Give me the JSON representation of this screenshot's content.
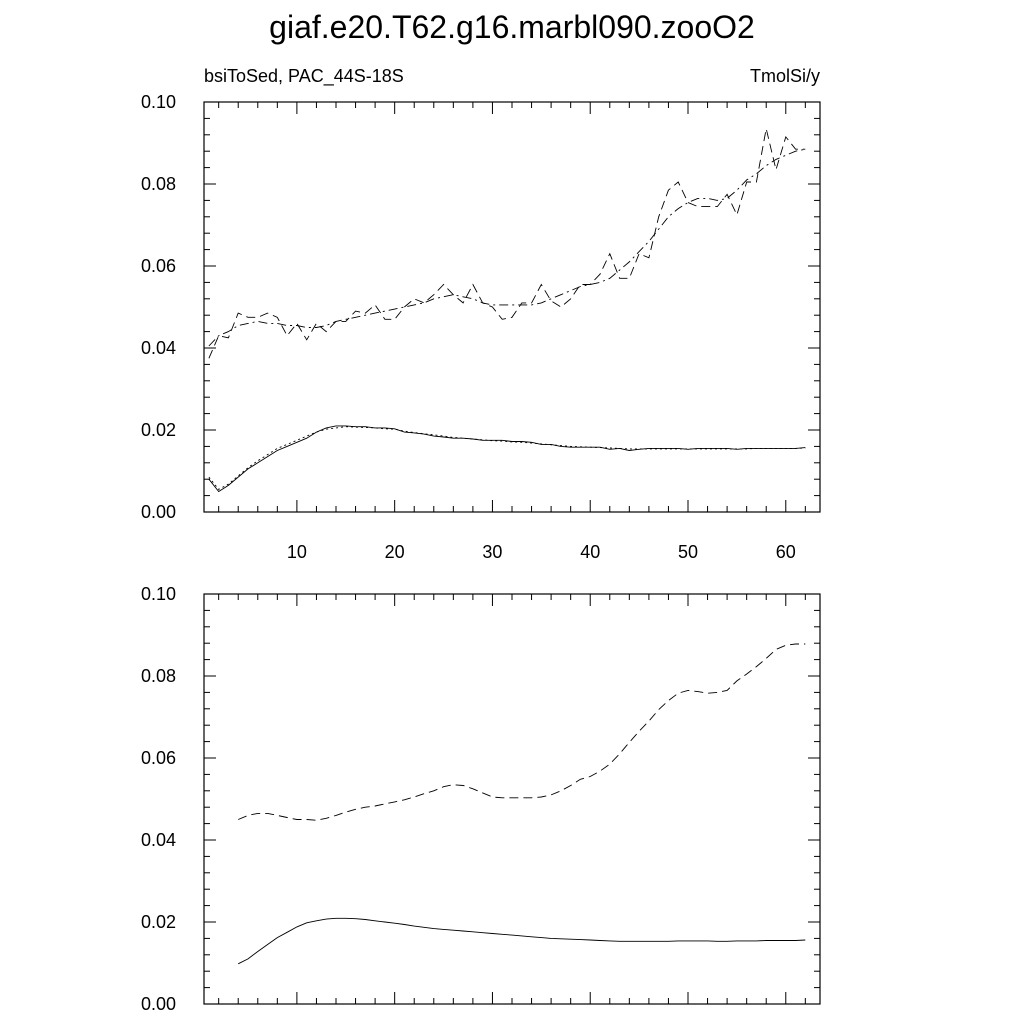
{
  "title": "giaf.e20.T62.g16.marbl090.zooO2",
  "panels": [
    {
      "left_label": "bsiToSed, PAC_44S-18S",
      "right_label": "TmolSi/y",
      "show_x_tick_labels": true
    },
    {
      "left_label": "",
      "right_label": "",
      "show_x_tick_labels": false
    }
  ],
  "chart_data": [
    {
      "type": "line",
      "xlim": [
        0.5,
        63.5
      ],
      "ylim": [
        0.0,
        0.1
      ],
      "x_major_ticks": [
        10,
        20,
        30,
        40,
        50,
        60
      ],
      "x_tick_labels": [
        "10",
        "20",
        "30",
        "40",
        "50",
        "60"
      ],
      "y_major_ticks": [
        0.0,
        0.02,
        0.04,
        0.06,
        0.08,
        0.1
      ],
      "y_tick_labels": [
        "0.00",
        "0.02",
        "0.04",
        "0.06",
        "0.08",
        "0.10"
      ],
      "grid": false,
      "series": [
        {
          "style": "dashed",
          "x": [
            1,
            2,
            3,
            4,
            5,
            6,
            7,
            8,
            9,
            10,
            11,
            12,
            13,
            14,
            15,
            16,
            17,
            18,
            19,
            20,
            21,
            22,
            23,
            24,
            25,
            26,
            27,
            28,
            29,
            30,
            31,
            32,
            33,
            34,
            35,
            36,
            37,
            38,
            39,
            40,
            41,
            42,
            43,
            44,
            45,
            46,
            47,
            48,
            49,
            50,
            51,
            52,
            53,
            54,
            55,
            56,
            57,
            58,
            59,
            60,
            61,
            62
          ],
          "values": [
            0.0375,
            0.043,
            0.0425,
            0.0485,
            0.0475,
            0.0475,
            0.0485,
            0.0475,
            0.043,
            0.046,
            0.042,
            0.046,
            0.044,
            0.0465,
            0.0465,
            0.049,
            0.0485,
            0.0505,
            0.047,
            0.047,
            0.05,
            0.052,
            0.051,
            0.053,
            0.0555,
            0.053,
            0.051,
            0.0555,
            0.051,
            0.05,
            0.047,
            0.0475,
            0.051,
            0.051,
            0.0555,
            0.0515,
            0.05,
            0.052,
            0.0555,
            0.0555,
            0.058,
            0.063,
            0.057,
            0.057,
            0.063,
            0.062,
            0.072,
            0.0785,
            0.0805,
            0.0755,
            0.0745,
            0.0745,
            0.0745,
            0.0775,
            0.0725,
            0.0805,
            0.0805,
            0.0935,
            0.0835,
            0.0915,
            0.0885,
            0.0885
          ]
        },
        {
          "style": "dash-dot",
          "x": [
            1,
            2,
            3,
            4,
            5,
            6,
            7,
            8,
            9,
            10,
            11,
            12,
            13,
            14,
            15,
            16,
            17,
            18,
            19,
            20,
            21,
            22,
            23,
            24,
            25,
            26,
            27,
            28,
            29,
            30,
            31,
            32,
            33,
            34,
            35,
            36,
            37,
            38,
            39,
            40,
            41,
            42,
            43,
            44,
            45,
            46,
            47,
            48,
            49,
            50,
            51,
            52,
            53,
            54,
            55,
            56,
            57,
            58,
            59,
            60,
            61,
            62
          ],
          "values": [
            0.0405,
            0.043,
            0.044,
            0.0455,
            0.046,
            0.0465,
            0.046,
            0.046,
            0.0455,
            0.0455,
            0.045,
            0.045,
            0.0455,
            0.0465,
            0.047,
            0.0475,
            0.048,
            0.0485,
            0.049,
            0.0495,
            0.05,
            0.0505,
            0.051,
            0.052,
            0.0525,
            0.053,
            0.0525,
            0.052,
            0.051,
            0.0505,
            0.0505,
            0.0505,
            0.0505,
            0.0505,
            0.051,
            0.052,
            0.053,
            0.054,
            0.055,
            0.0555,
            0.056,
            0.057,
            0.059,
            0.061,
            0.0635,
            0.066,
            0.069,
            0.072,
            0.074,
            0.0755,
            0.0765,
            0.0765,
            0.076,
            0.0765,
            0.0785,
            0.081,
            0.0825,
            0.0845,
            0.086,
            0.087,
            0.088,
            0.0885
          ]
        },
        {
          "style": "solid",
          "x": [
            1,
            2,
            3,
            4,
            5,
            6,
            7,
            8,
            9,
            10,
            11,
            12,
            13,
            14,
            15,
            16,
            17,
            18,
            19,
            20,
            21,
            22,
            23,
            24,
            25,
            26,
            27,
            28,
            29,
            30,
            31,
            32,
            33,
            34,
            35,
            36,
            37,
            38,
            39,
            40,
            41,
            42,
            43,
            44,
            45,
            46,
            47,
            48,
            49,
            50,
            51,
            52,
            53,
            54,
            55,
            56,
            57,
            58,
            59,
            60,
            61,
            62
          ],
          "values": [
            0.008,
            0.005,
            0.0065,
            0.0085,
            0.0105,
            0.012,
            0.0135,
            0.015,
            0.016,
            0.017,
            0.018,
            0.0195,
            0.0205,
            0.021,
            0.021,
            0.0208,
            0.0208,
            0.0205,
            0.0205,
            0.0203,
            0.0195,
            0.0193,
            0.019,
            0.0185,
            0.0183,
            0.018,
            0.018,
            0.0178,
            0.0175,
            0.0175,
            0.0175,
            0.0172,
            0.0172,
            0.017,
            0.0165,
            0.0165,
            0.016,
            0.0158,
            0.0158,
            0.0158,
            0.0158,
            0.0153,
            0.0155,
            0.015,
            0.0153,
            0.0155,
            0.0155,
            0.0155,
            0.0155,
            0.0153,
            0.0155,
            0.0155,
            0.0155,
            0.0155,
            0.0153,
            0.0155,
            0.0155,
            0.0155,
            0.0155,
            0.0155,
            0.0155,
            0.0157
          ]
        },
        {
          "style": "dotted",
          "x": [
            1,
            2,
            3,
            4,
            5,
            6,
            7,
            8,
            9,
            10,
            11,
            12,
            13,
            14,
            15,
            16,
            17,
            18,
            19,
            20,
            21,
            22,
            23,
            24,
            25,
            26,
            27,
            28,
            29,
            30,
            31,
            32,
            33,
            34,
            35,
            36,
            37,
            38,
            39,
            40,
            41,
            42,
            43,
            44,
            45,
            46,
            47,
            48,
            49,
            50,
            51,
            52,
            53,
            54,
            55,
            56,
            57,
            58,
            59,
            60,
            61,
            62
          ],
          "values": [
            0.0085,
            0.0055,
            0.0068,
            0.0088,
            0.0108,
            0.0125,
            0.014,
            0.0155,
            0.0165,
            0.0175,
            0.0185,
            0.0195,
            0.0202,
            0.0205,
            0.0208,
            0.0207,
            0.0206,
            0.0205,
            0.0203,
            0.0202,
            0.0197,
            0.0194,
            0.0191,
            0.0188,
            0.0185,
            0.0182,
            0.018,
            0.0178,
            0.0176,
            0.0174,
            0.0173,
            0.0171,
            0.017,
            0.0168,
            0.0166,
            0.0164,
            0.0162,
            0.016,
            0.0159,
            0.0158,
            0.0157,
            0.0156,
            0.0155,
            0.0154,
            0.0154,
            0.0154,
            0.0154,
            0.0154,
            0.0154,
            0.0154,
            0.0154,
            0.0154,
            0.0154,
            0.0154,
            0.0154,
            0.0154,
            0.0155,
            0.0155,
            0.0155,
            0.0155,
            0.0155,
            0.0156
          ]
        }
      ]
    },
    {
      "type": "line",
      "xlim": [
        0.5,
        63.5
      ],
      "ylim": [
        0.0,
        0.1
      ],
      "x_major_ticks": [
        10,
        20,
        30,
        40,
        50,
        60
      ],
      "x_tick_labels": [],
      "y_major_ticks": [
        0.0,
        0.02,
        0.04,
        0.06,
        0.08,
        0.1
      ],
      "y_tick_labels": [
        "0.00",
        "0.02",
        "0.04",
        "0.06",
        "0.08",
        "0.10"
      ],
      "grid": false,
      "series": [
        {
          "style": "dashed",
          "x": [
            4,
            5,
            6,
            7,
            8,
            9,
            10,
            11,
            12,
            13,
            14,
            15,
            16,
            17,
            18,
            19,
            20,
            21,
            22,
            23,
            24,
            25,
            26,
            27,
            28,
            29,
            30,
            31,
            32,
            33,
            34,
            35,
            36,
            37,
            38,
            39,
            40,
            41,
            42,
            43,
            44,
            45,
            46,
            47,
            48,
            49,
            50,
            51,
            52,
            53,
            54,
            55,
            56,
            57,
            58,
            59,
            60,
            61,
            62
          ],
          "values": [
            0.045,
            0.046,
            0.0465,
            0.0465,
            0.046,
            0.0455,
            0.045,
            0.045,
            0.0448,
            0.0453,
            0.046,
            0.0468,
            0.0475,
            0.048,
            0.0483,
            0.0488,
            0.0493,
            0.0498,
            0.0505,
            0.0513,
            0.052,
            0.053,
            0.0535,
            0.0533,
            0.0525,
            0.0515,
            0.0505,
            0.0503,
            0.0503,
            0.0503,
            0.0503,
            0.0505,
            0.051,
            0.052,
            0.0533,
            0.0548,
            0.0555,
            0.0568,
            0.0585,
            0.061,
            0.0638,
            0.0665,
            0.069,
            0.0718,
            0.074,
            0.0758,
            0.0765,
            0.0762,
            0.0758,
            0.076,
            0.0765,
            0.0788,
            0.0805,
            0.0823,
            0.0843,
            0.0865,
            0.0875,
            0.0878,
            0.0878
          ]
        },
        {
          "style": "solid",
          "x": [
            4,
            5,
            6,
            7,
            8,
            9,
            10,
            11,
            12,
            13,
            14,
            15,
            16,
            17,
            18,
            19,
            20,
            21,
            22,
            23,
            24,
            25,
            26,
            27,
            28,
            29,
            30,
            31,
            32,
            33,
            34,
            35,
            36,
            37,
            38,
            39,
            40,
            41,
            42,
            43,
            44,
            45,
            46,
            47,
            48,
            49,
            50,
            51,
            52,
            53,
            54,
            55,
            56,
            57,
            58,
            59,
            60,
            61,
            62
          ],
          "values": [
            0.0098,
            0.011,
            0.0128,
            0.0145,
            0.0162,
            0.0175,
            0.0188,
            0.0198,
            0.0203,
            0.0207,
            0.0209,
            0.0209,
            0.0208,
            0.0206,
            0.0203,
            0.02,
            0.0197,
            0.0194,
            0.019,
            0.0187,
            0.0184,
            0.0182,
            0.018,
            0.0178,
            0.0176,
            0.0174,
            0.0172,
            0.017,
            0.0168,
            0.0166,
            0.0164,
            0.0162,
            0.016,
            0.0159,
            0.0158,
            0.0157,
            0.0156,
            0.0155,
            0.0154,
            0.0153,
            0.0153,
            0.0153,
            0.0153,
            0.0153,
            0.0153,
            0.0154,
            0.0154,
            0.0154,
            0.0154,
            0.0153,
            0.0153,
            0.0154,
            0.0154,
            0.0154,
            0.0155,
            0.0155,
            0.0155,
            0.0155,
            0.0156
          ]
        }
      ]
    }
  ]
}
